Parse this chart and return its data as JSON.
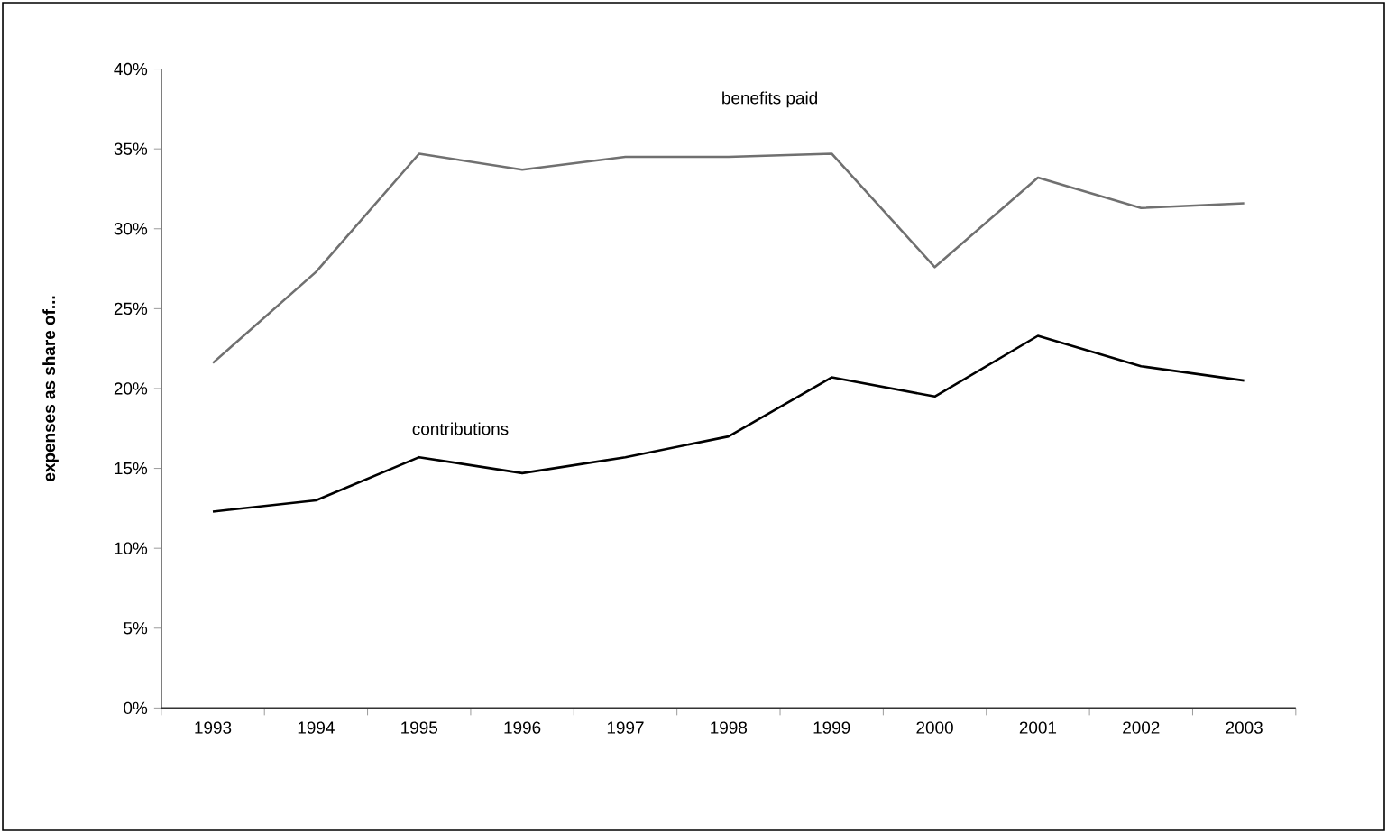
{
  "chart_data": {
    "type": "line",
    "ylabel": "expenses as share of...",
    "categories": [
      "1993",
      "1994",
      "1995",
      "1996",
      "1997",
      "1998",
      "1999",
      "2000",
      "2001",
      "2002",
      "2003"
    ],
    "series": [
      {
        "name": "benefits paid",
        "color": "#707070",
        "values": [
          21.6,
          27.3,
          34.7,
          33.7,
          34.5,
          34.5,
          34.7,
          27.6,
          33.2,
          31.3,
          31.6
        ]
      },
      {
        "name": "contributions",
        "color": "#000000",
        "values": [
          12.3,
          13.0,
          15.7,
          14.7,
          15.7,
          17.0,
          20.7,
          19.5,
          23.3,
          21.4,
          20.5
        ]
      }
    ],
    "ylim": [
      0,
      40
    ],
    "yticks": [
      {
        "value": 0,
        "label": "0%"
      },
      {
        "value": 5,
        "label": "5%"
      },
      {
        "value": 10,
        "label": "10%"
      },
      {
        "value": 15,
        "label": "15%"
      },
      {
        "value": 20,
        "label": "20%"
      },
      {
        "value": 25,
        "label": "25%"
      },
      {
        "value": 30,
        "label": "30%"
      },
      {
        "value": 35,
        "label": "35%"
      },
      {
        "value": 40,
        "label": "40%"
      }
    ],
    "grid": false,
    "legend": false,
    "marker": "none",
    "line_style": "solid"
  }
}
